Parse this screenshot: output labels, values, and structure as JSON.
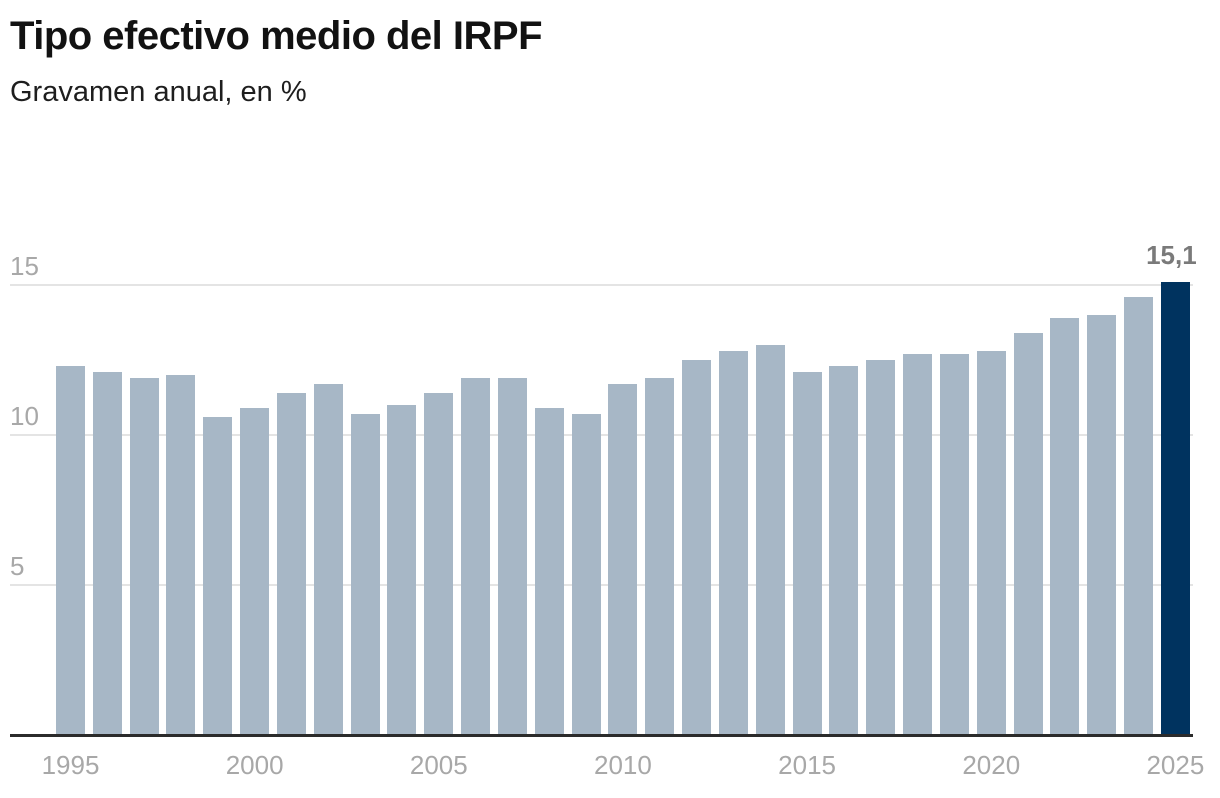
{
  "header": {
    "title": "Tipo efectivo medio del IRPF",
    "subtitle": "Gravamen anual, en %"
  },
  "colors": {
    "bar": "#a7b7c6",
    "highlight": "#00335f",
    "grid": "#e4e4e4",
    "axis": "#2b2b2b",
    "tick_text": "#a8a8a8",
    "annotation": "#7a7a7a"
  },
  "chart_data": {
    "type": "bar",
    "title": "Tipo efectivo medio del IRPF",
    "subtitle": "Gravamen anual, en %",
    "xlabel": "",
    "ylabel": "",
    "ylim": [
      0,
      15.5
    ],
    "yticks": [
      5,
      10,
      15
    ],
    "xticks": [
      "1995",
      "2000",
      "2005",
      "2010",
      "2015",
      "2020",
      "2025"
    ],
    "grid": true,
    "legend": null,
    "categories": [
      "1995",
      "1996",
      "1997",
      "1998",
      "1999",
      "2000",
      "2001",
      "2002",
      "2003",
      "2004",
      "2005",
      "2006",
      "2007",
      "2008",
      "2009",
      "2010",
      "2011",
      "2012",
      "2013",
      "2014",
      "2015",
      "2016",
      "2017",
      "2018",
      "2019",
      "2020",
      "2021",
      "2022",
      "2023",
      "2024",
      "2025"
    ],
    "values": [
      12.3,
      12.1,
      11.9,
      12.0,
      10.6,
      10.9,
      11.4,
      11.7,
      10.7,
      11.0,
      11.4,
      11.9,
      11.9,
      10.9,
      10.7,
      11.7,
      11.9,
      12.5,
      12.8,
      13.0,
      12.1,
      12.3,
      12.5,
      12.7,
      12.7,
      12.8,
      13.4,
      13.9,
      14.0,
      14.6,
      15.1
    ],
    "highlight_index": 30,
    "annotations": [
      {
        "category": "2025",
        "label": "15,1"
      }
    ]
  }
}
